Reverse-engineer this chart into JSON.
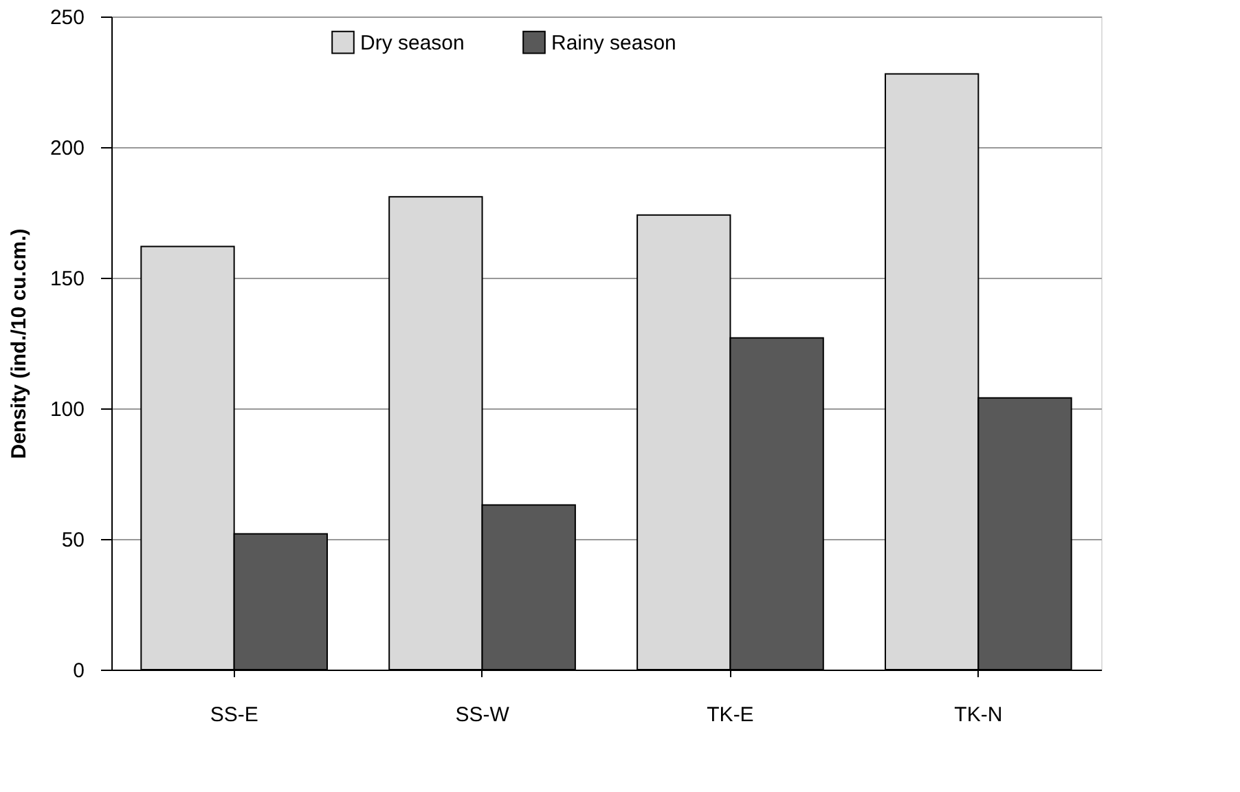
{
  "chart_data": {
    "type": "bar",
    "ylabel": "Density (ind./10 cu.cm.)",
    "categories": [
      "SS-E",
      "SS-W",
      "TK-E",
      "TK-N"
    ],
    "series": [
      {
        "name": "Dry season",
        "color": "#d9d9d9",
        "values": [
          162,
          181,
          174,
          228
        ]
      },
      {
        "name": "Rainy season",
        "color": "#595959",
        "values": [
          52,
          63,
          127,
          104
        ]
      }
    ],
    "ylim": [
      0,
      250
    ],
    "yticks": [
      0,
      50,
      100,
      150,
      200,
      250
    ],
    "grid": "y",
    "legend": "top"
  }
}
